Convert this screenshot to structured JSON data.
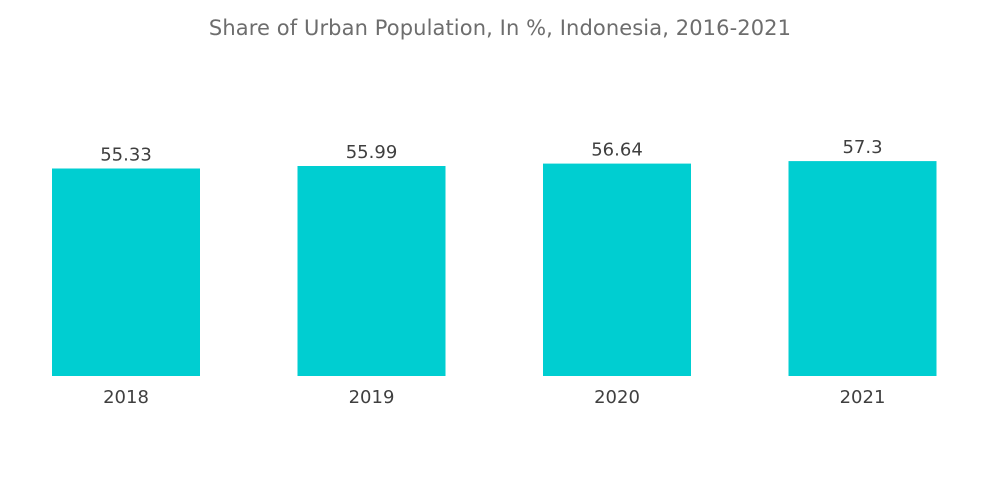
{
  "chart_data": {
    "type": "bar",
    "title": "Share of Urban Population, In %, Indonesia, 2016-2021",
    "categories": [
      "2018",
      "2019",
      "2020",
      "2021"
    ],
    "values": [
      55.33,
      55.99,
      56.64,
      57.3
    ],
    "value_labels": [
      "55.33",
      "55.99",
      "56.64",
      "57.3"
    ],
    "xlabel": "",
    "ylabel": "",
    "ylim": [
      0,
      59
    ],
    "grid": false,
    "legend": "none",
    "colors": {
      "bar": "#00ced1",
      "title": "#6d6d6d",
      "label": "#3f3f3f"
    }
  }
}
